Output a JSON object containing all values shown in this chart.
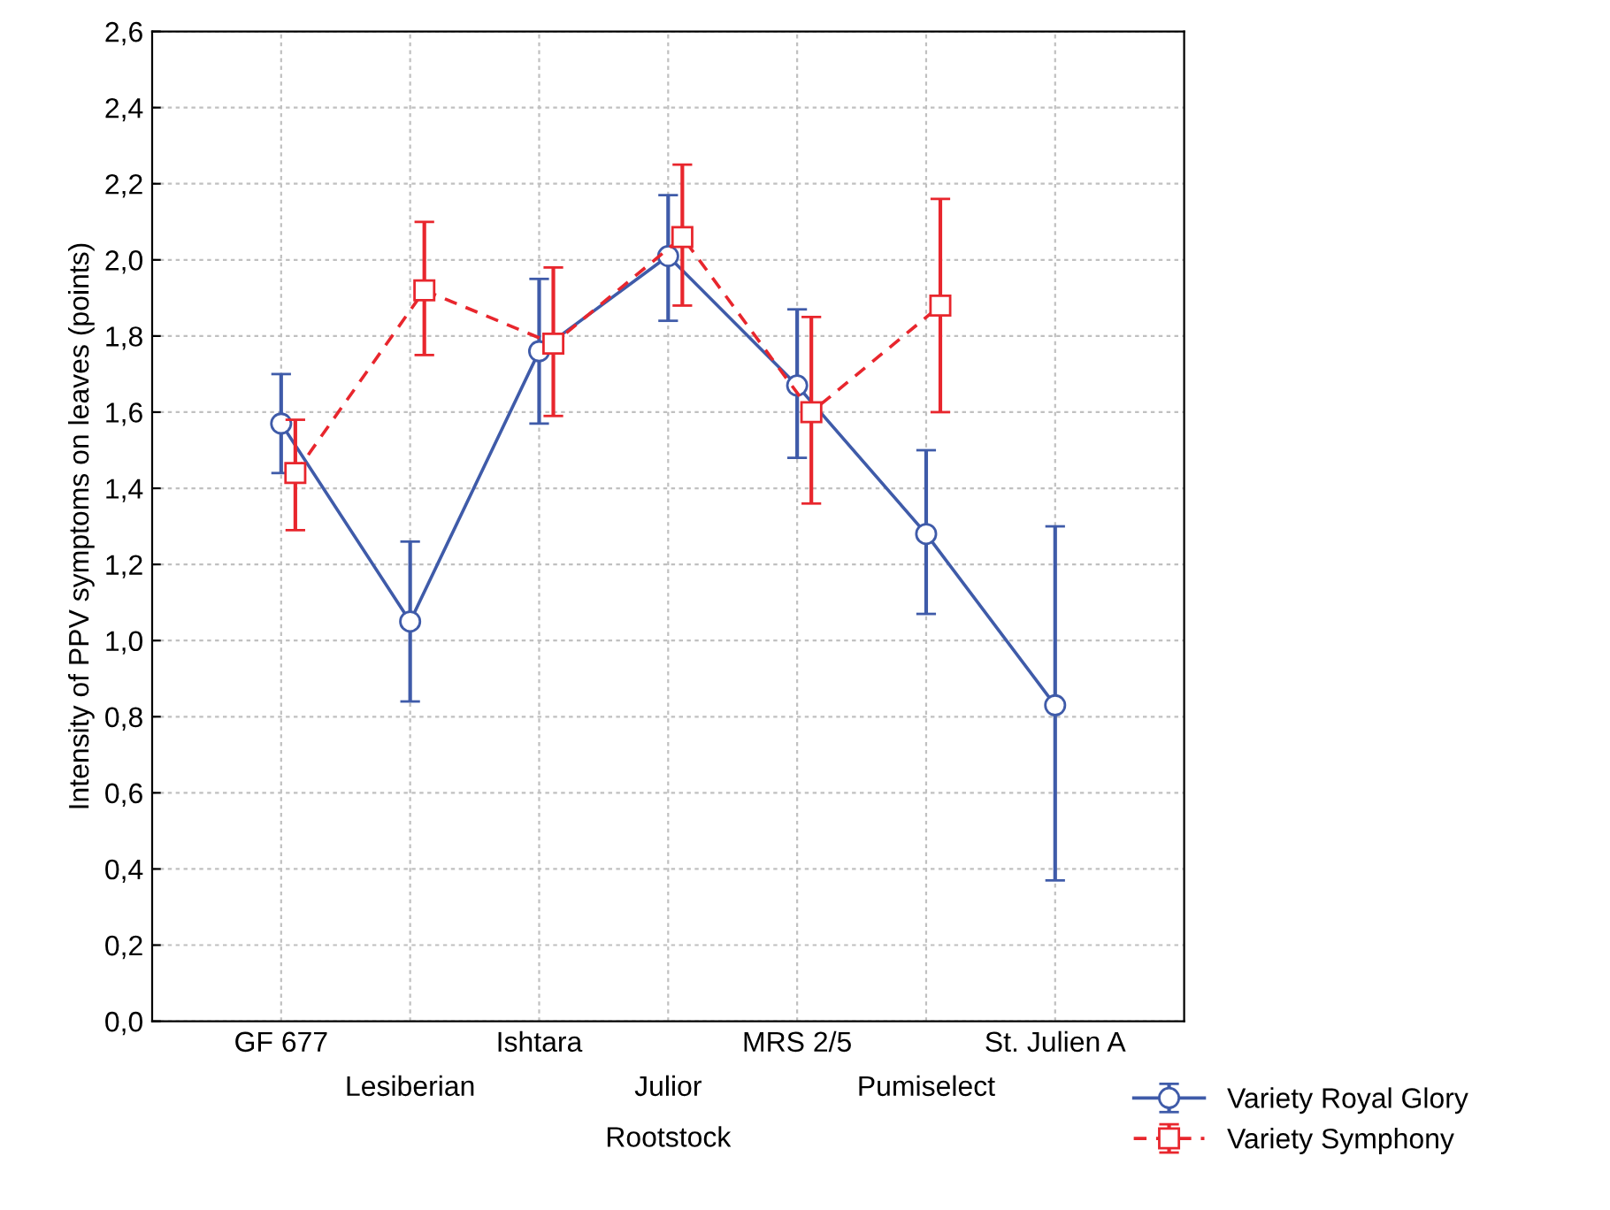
{
  "chart_data": {
    "type": "line",
    "xlabel": "Rootstock",
    "ylabel": "Intensity of PPV symptoms on leaves (points)",
    "categories": [
      "GF 677",
      "Lesiberian",
      "Ishtara",
      "Julior",
      "MRS 2/5",
      "Pumiselect",
      "St. Julien A"
    ],
    "series": [
      {
        "name": "Variety Royal Glory",
        "color": "#3f5ba9",
        "marker": "circle",
        "line_style": "solid",
        "values": [
          1.57,
          1.05,
          1.76,
          2.01,
          1.67,
          1.28,
          0.83
        ],
        "errors": [
          [
            1.44,
            1.7
          ],
          [
            0.84,
            1.26
          ],
          [
            1.57,
            1.95
          ],
          [
            1.84,
            2.17
          ],
          [
            1.48,
            1.87
          ],
          [
            1.07,
            1.5
          ],
          [
            0.37,
            1.3
          ]
        ]
      },
      {
        "name": "Variety Symphony",
        "color": "#e8262d",
        "marker": "square",
        "line_style": "dashed",
        "values": [
          1.44,
          1.92,
          1.78,
          2.06,
          1.6,
          1.88,
          null
        ],
        "errors": [
          [
            1.29,
            1.58
          ],
          [
            1.75,
            2.1
          ],
          [
            1.59,
            1.98
          ],
          [
            1.88,
            2.25
          ],
          [
            1.36,
            1.85
          ],
          [
            1.6,
            2.16
          ],
          null
        ]
      }
    ],
    "ylim": [
      0,
      2.6
    ],
    "yticks": [
      {
        "value": 0,
        "label": "0,0"
      },
      {
        "value": 0.2,
        "label": "0,2"
      },
      {
        "value": 0.4,
        "label": "0,4"
      },
      {
        "value": 0.6,
        "label": "0,6"
      },
      {
        "value": 0.8,
        "label": "0,8"
      },
      {
        "value": 1.0,
        "label": "1,0"
      },
      {
        "value": 1.2,
        "label": "1,2"
      },
      {
        "value": 1.4,
        "label": "1,4"
      },
      {
        "value": 1.6,
        "label": "1,6"
      },
      {
        "value": 1.8,
        "label": "1,8"
      },
      {
        "value": 2.0,
        "label": "2,0"
      },
      {
        "value": 2.2,
        "label": "2,2"
      },
      {
        "value": 2.4,
        "label": "2,4"
      },
      {
        "value": 2.6,
        "label": "2,6"
      }
    ],
    "grid": true,
    "legend": "bottom right"
  }
}
